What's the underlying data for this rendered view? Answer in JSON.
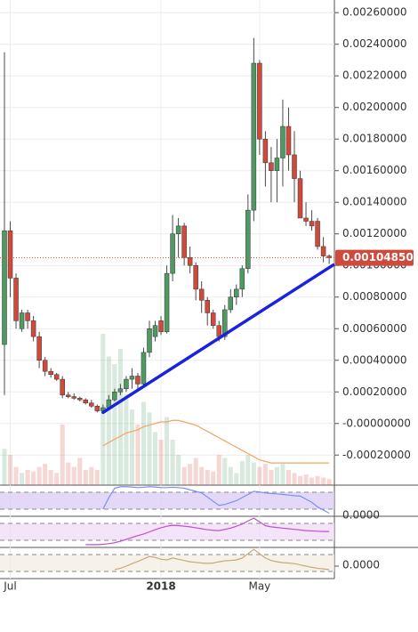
{
  "chart_data": {
    "type": "candlestick",
    "categories": [
      null,
      "Jul",
      null,
      null,
      null,
      null,
      null,
      null,
      null,
      null,
      null,
      null,
      null,
      null,
      null,
      null,
      null,
      null,
      null,
      null,
      null,
      null,
      null,
      null,
      null,
      null,
      null,
      "2018",
      null,
      null,
      null,
      null,
      null,
      null,
      null,
      null,
      null,
      null,
      null,
      null,
      null,
      null,
      null,
      null,
      "May",
      null,
      null,
      null,
      null,
      null,
      null,
      null,
      null,
      null,
      null,
      null,
      null
    ],
    "open": [
      0.0005,
      0.00122,
      0.00092,
      0.0006,
      0.0007,
      0.00065,
      0.00055,
      0.0004,
      0.00033,
      0.00031,
      0.00028,
      0.00018,
      0.00017,
      0.00016,
      0.00015,
      0.00013,
      0.00011,
      8e-05,
      0.0001,
      0.00015,
      0.0002,
      0.00022,
      0.00028,
      0.0003,
      0.00025,
      0.00045,
      0.00055,
      0.00065,
      0.00058,
      0.00095,
      0.0012,
      0.00125,
      0.00105,
      0.001,
      0.00085,
      0.00078,
      0.0007,
      0.00062,
      0.00055,
      0.00072,
      0.0008,
      0.00085,
      0.00098,
      0.00135,
      0.00228,
      0.0018,
      0.00165,
      0.0016,
      0.00168,
      0.00188,
      0.0017,
      0.00155,
      0.0013,
      0.00128,
      0.00128,
      0.00112,
      0.00106
    ],
    "high": [
      0.00235,
      0.00128,
      0.00095,
      0.00072,
      0.00072,
      0.00068,
      0.00058,
      0.00042,
      0.00035,
      0.00032,
      0.0003,
      0.0002,
      0.00019,
      0.00017,
      0.00016,
      0.00015,
      0.00012,
      0.00012,
      0.00018,
      0.00022,
      0.00025,
      0.0003,
      0.00035,
      0.00032,
      0.00048,
      0.00065,
      0.00065,
      0.00068,
      0.001,
      0.00132,
      0.0013,
      0.00127,
      0.00112,
      0.00102,
      0.0009,
      0.0008,
      0.00072,
      0.00065,
      0.00075,
      0.00085,
      0.00088,
      0.001,
      0.00145,
      0.00244,
      0.0023,
      0.00185,
      0.00175,
      0.0018,
      0.00205,
      0.002,
      0.00185,
      0.0016,
      0.0014,
      0.00135,
      0.0013,
      0.00118,
      0.00107
    ],
    "low": [
      0.00018,
      0.0008,
      0.0006,
      0.00058,
      0.0006,
      0.00052,
      0.00035,
      0.0003,
      0.00029,
      0.00027,
      0.00016,
      0.00016,
      0.00015,
      0.00014,
      0.00012,
      0.0001,
      7e-05,
      7e-05,
      9e-05,
      0.00014,
      0.00018,
      0.0002,
      0.00022,
      0.00022,
      0.00024,
      0.00042,
      0.00052,
      0.00056,
      0.00057,
      0.0009,
      0.00105,
      0.001,
      0.00095,
      0.00078,
      0.0007,
      0.00062,
      0.0006,
      0.00052,
      0.00053,
      0.0007,
      0.00075,
      0.0008,
      0.00095,
      0.00128,
      0.0017,
      0.0015,
      0.0014,
      0.0014,
      0.0015,
      0.0016,
      0.0014,
      0.0013,
      0.00125,
      0.00122,
      0.0011,
      0.00102,
      0.00101
    ],
    "close": [
      0.00122,
      0.00092,
      0.00065,
      0.0007,
      0.00065,
      0.00055,
      0.0004,
      0.00033,
      0.00031,
      0.00028,
      0.00018,
      0.00017,
      0.00016,
      0.00015,
      0.00013,
      0.00011,
      8e-05,
      0.0001,
      0.00015,
      0.0002,
      0.00022,
      0.00028,
      0.0003,
      0.00025,
      0.00045,
      0.0006,
      0.00062,
      0.00058,
      0.00095,
      0.0012,
      0.00125,
      0.00105,
      0.001,
      0.00085,
      0.00078,
      0.0007,
      0.00062,
      0.00055,
      0.00072,
      0.0008,
      0.00085,
      0.00098,
      0.00135,
      0.00228,
      0.0018,
      0.00165,
      0.0016,
      0.00168,
      0.00188,
      0.0017,
      0.00155,
      0.0013,
      0.00128,
      0.00125,
      0.00112,
      0.00106,
      0.0010485
    ],
    "up_color": "#4e9a62",
    "down_color": "#d04a3c",
    "volume": [
      24,
      20,
      12,
      8,
      10,
      9,
      12,
      14,
      10,
      8,
      40,
      15,
      12,
      18,
      10,
      12,
      10,
      100,
      85,
      80,
      90,
      60,
      50,
      40,
      55,
      48,
      35,
      30,
      45,
      30,
      20,
      12,
      14,
      18,
      12,
      10,
      9,
      20,
      18,
      12,
      8,
      16,
      20,
      15,
      12,
      14,
      10,
      12,
      14,
      10,
      8,
      6,
      7,
      5,
      6,
      5,
      4
    ],
    "volume_ylim": [
      0,
      100
    ],
    "ma": {
      "color": "#f4a460",
      "values": [
        null,
        null,
        null,
        null,
        null,
        null,
        null,
        null,
        null,
        null,
        null,
        null,
        null,
        null,
        null,
        null,
        null,
        -0.00014,
        -0.00012,
        -0.0001,
        -8e-05,
        -6e-05,
        -5e-05,
        -4e-05,
        -2e-05,
        -1e-05,
        0,
        1e-05,
        1e-05,
        2e-05,
        2e-05,
        1e-05,
        0,
        -1e-05,
        -3e-05,
        -5e-05,
        -7e-05,
        -9e-05,
        -0.00011,
        -0.00013,
        -0.00015,
        -0.00017,
        -0.00019,
        -0.00021,
        -0.00023,
        -0.00024,
        -0.00025,
        -0.00025,
        -0.00025,
        -0.00025,
        -0.00025,
        -0.00025,
        -0.00025,
        -0.00025,
        -0.00025,
        -0.00025,
        -0.00025
      ]
    },
    "trendline": {
      "color": "#1a22e0",
      "x": [
        17,
        56.7
      ],
      "values": [
        7e-05,
        0.001003
      ]
    },
    "last_price": 0.0010485,
    "last_price_label": "0.00104850",
    "last_price_color": "#d04a3c",
    "ylim": [
      -0.00039,
      0.00268
    ],
    "yticks": [
      {
        "value": 0.0026,
        "label": "0.00260000"
      },
      {
        "value": 0.0024,
        "label": "0.00240000"
      },
      {
        "value": 0.0022,
        "label": "0.00220000"
      },
      {
        "value": 0.002,
        "label": "0.00200000"
      },
      {
        "value": 0.0018,
        "label": "0.00180000"
      },
      {
        "value": 0.0016,
        "label": "0.00160000"
      },
      {
        "value": 0.0014,
        "label": "0.00140000"
      },
      {
        "value": 0.0012,
        "label": "0.00120000"
      },
      {
        "value": 0.001,
        "label": "0.00100000"
      },
      {
        "value": 0.0008,
        "label": "0.00080000"
      },
      {
        "value": 0.0006,
        "label": "0.00060000"
      },
      {
        "value": 0.0004,
        "label": "0.00040000"
      },
      {
        "value": 0.0002,
        "label": "0.00020000"
      },
      {
        "value": 0,
        "label": "-0.00000000"
      },
      {
        "value": -0.0002,
        "label": "-0.00020000"
      }
    ],
    "grid": true,
    "panels": [
      {
        "ylim": [
          0,
          100
        ],
        "yticks": [
          {
            "value": 0,
            "label": "0.0000"
          }
        ],
        "band_color": "#d9c8f5",
        "series": [
          {
            "color": "#7d8ef0",
            "values": [
              null,
              null,
              null,
              null,
              null,
              null,
              null,
              null,
              null,
              null,
              null,
              null,
              null,
              null,
              null,
              null,
              null,
              23,
              60,
              90,
              95,
              95,
              94,
              92,
              93,
              95,
              94,
              92,
              92,
              93,
              92,
              90,
              85,
              80,
              75,
              62,
              48,
              35,
              38,
              44,
              50,
              60,
              70,
              80,
              78,
              75,
              73,
              72,
              70,
              68,
              66,
              65,
              55,
              45,
              30,
              20,
              10
            ]
          }
        ]
      },
      {
        "ylim": [
          0,
          100
        ],
        "yticks": [],
        "band_color": "#f0d8f8",
        "series": [
          {
            "color": "#c050c8",
            "values": [
              null,
              null,
              null,
              null,
              null,
              null,
              null,
              null,
              null,
              null,
              null,
              null,
              null,
              null,
              9,
              9,
              9,
              10,
              12,
              15,
              20,
              26,
              32,
              38,
              43,
              50,
              57,
              63,
              68,
              71,
              70,
              68,
              66,
              63,
              60,
              57,
              55,
              54,
              58,
              62,
              68,
              75,
              85,
              94,
              82,
              70,
              66,
              64,
              62,
              60,
              58,
              56,
              54,
              53,
              52,
              51,
              51
            ]
          }
        ]
      },
      {
        "ylim": [
          -40,
          60
        ],
        "yticks": [
          {
            "value": 0,
            "label": "0.0000"
          }
        ],
        "band_color": "#f3ece0",
        "series": [
          {
            "color": "#c8a878",
            "values": [
              null,
              null,
              null,
              null,
              null,
              null,
              null,
              null,
              null,
              null,
              null,
              null,
              null,
              null,
              null,
              null,
              null,
              null,
              null,
              -11,
              -7,
              0,
              8,
              15,
              23,
              31,
              28,
              22,
              20,
              26,
              22,
              18,
              14,
              12,
              10,
              9,
              10,
              14,
              17,
              18,
              20,
              26,
              40,
              54,
              40,
              26,
              18,
              14,
              11,
              10,
              8,
              4,
              0,
              -4,
              -7,
              -9,
              -11
            ]
          }
        ]
      }
    ]
  }
}
